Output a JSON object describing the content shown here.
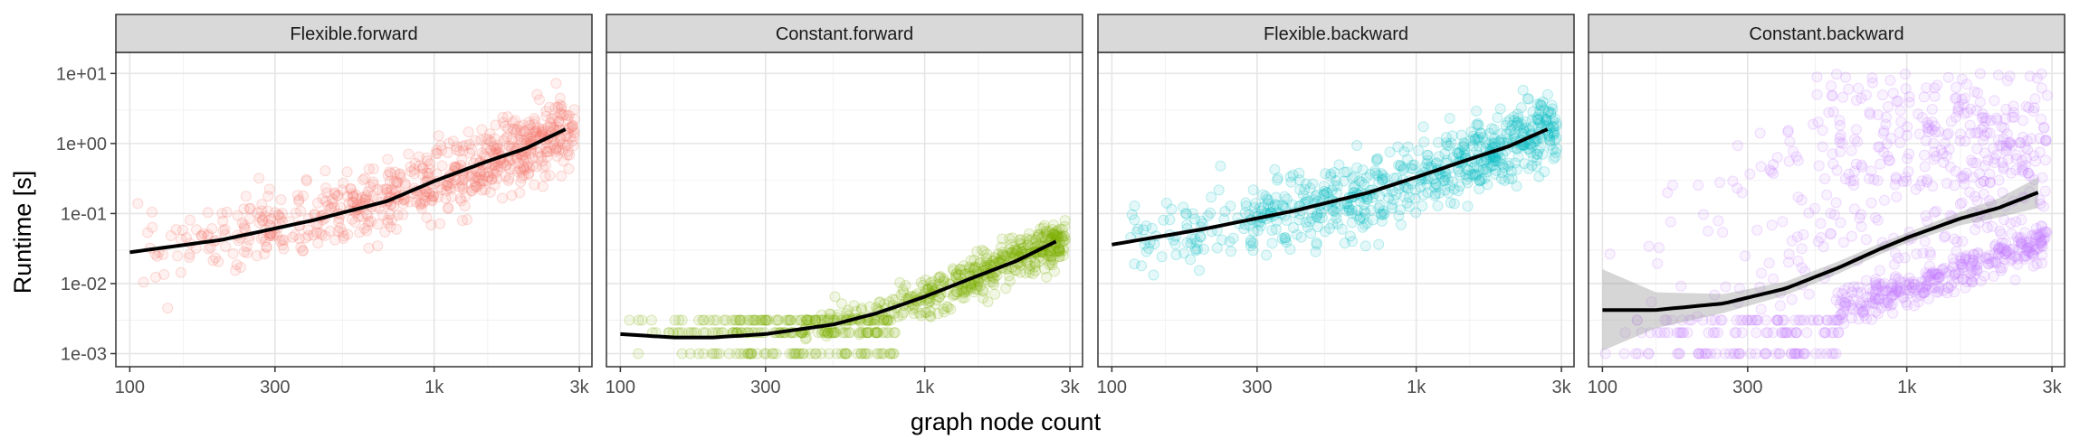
{
  "chart_data": {
    "type": "scatter",
    "layout": "facet_grid",
    "xlabel": "graph node count",
    "ylabel": "Runtime [s]",
    "x_scale": "log10",
    "y_scale": "log10",
    "xlim": [
      90,
      3300
    ],
    "ylim": [
      0.00065,
      20
    ],
    "x_ticks": [
      100,
      300,
      1000,
      3000
    ],
    "x_tick_labels": [
      "100",
      "300",
      "1k",
      "3k"
    ],
    "y_ticks": [
      0.001,
      0.01,
      0.1,
      1,
      10
    ],
    "y_tick_labels": [
      "1e-03",
      "1e-02",
      "1e-01",
      "1e+00",
      "1e+01"
    ],
    "grid": true,
    "legend": "none",
    "panels": [
      {
        "title": "Flexible.forward",
        "color": "#F8766D",
        "smooth": {
          "x": [
            100,
            200,
            400,
            700,
            1000,
            1500,
            2000,
            2700
          ],
          "y": [
            0.028,
            0.042,
            0.08,
            0.15,
            0.29,
            0.56,
            0.85,
            1.6
          ]
        },
        "point_spread_decades": 0.25
      },
      {
        "title": "Constant.forward",
        "color": "#7CAE00",
        "smooth": {
          "x": [
            100,
            150,
            200,
            300,
            500,
            700,
            1000,
            1500,
            2000,
            2700
          ],
          "y": [
            0.0019,
            0.0017,
            0.0017,
            0.0019,
            0.0026,
            0.0038,
            0.0065,
            0.013,
            0.021,
            0.04
          ]
        },
        "point_spread_decades": 0.15
      },
      {
        "title": "Flexible.backward",
        "color": "#00BFC4",
        "smooth": {
          "x": [
            100,
            200,
            400,
            700,
            1000,
            1500,
            2000,
            2700
          ],
          "y": [
            0.036,
            0.06,
            0.11,
            0.2,
            0.33,
            0.6,
            0.9,
            1.6
          ]
        },
        "point_spread_decades": 0.25
      },
      {
        "title": "Constant.backward",
        "color": "#C77CFF",
        "smooth": {
          "x": [
            100,
            150,
            250,
            400,
            600,
            800,
            1000,
            1500,
            2000,
            2700
          ],
          "y": [
            0.0042,
            0.0042,
            0.0052,
            0.0085,
            0.017,
            0.03,
            0.045,
            0.085,
            0.12,
            0.2
          ]
        },
        "smooth_ci_low": [
          0.0011,
          0.0023,
          0.0038,
          0.0068,
          0.014,
          0.025,
          0.038,
          0.068,
          0.088,
          0.12
        ],
        "smooth_ci_high": [
          0.016,
          0.0075,
          0.0071,
          0.0107,
          0.021,
          0.036,
          0.053,
          0.106,
          0.165,
          0.33
        ],
        "point_spread_decades": 0.6
      }
    ]
  }
}
